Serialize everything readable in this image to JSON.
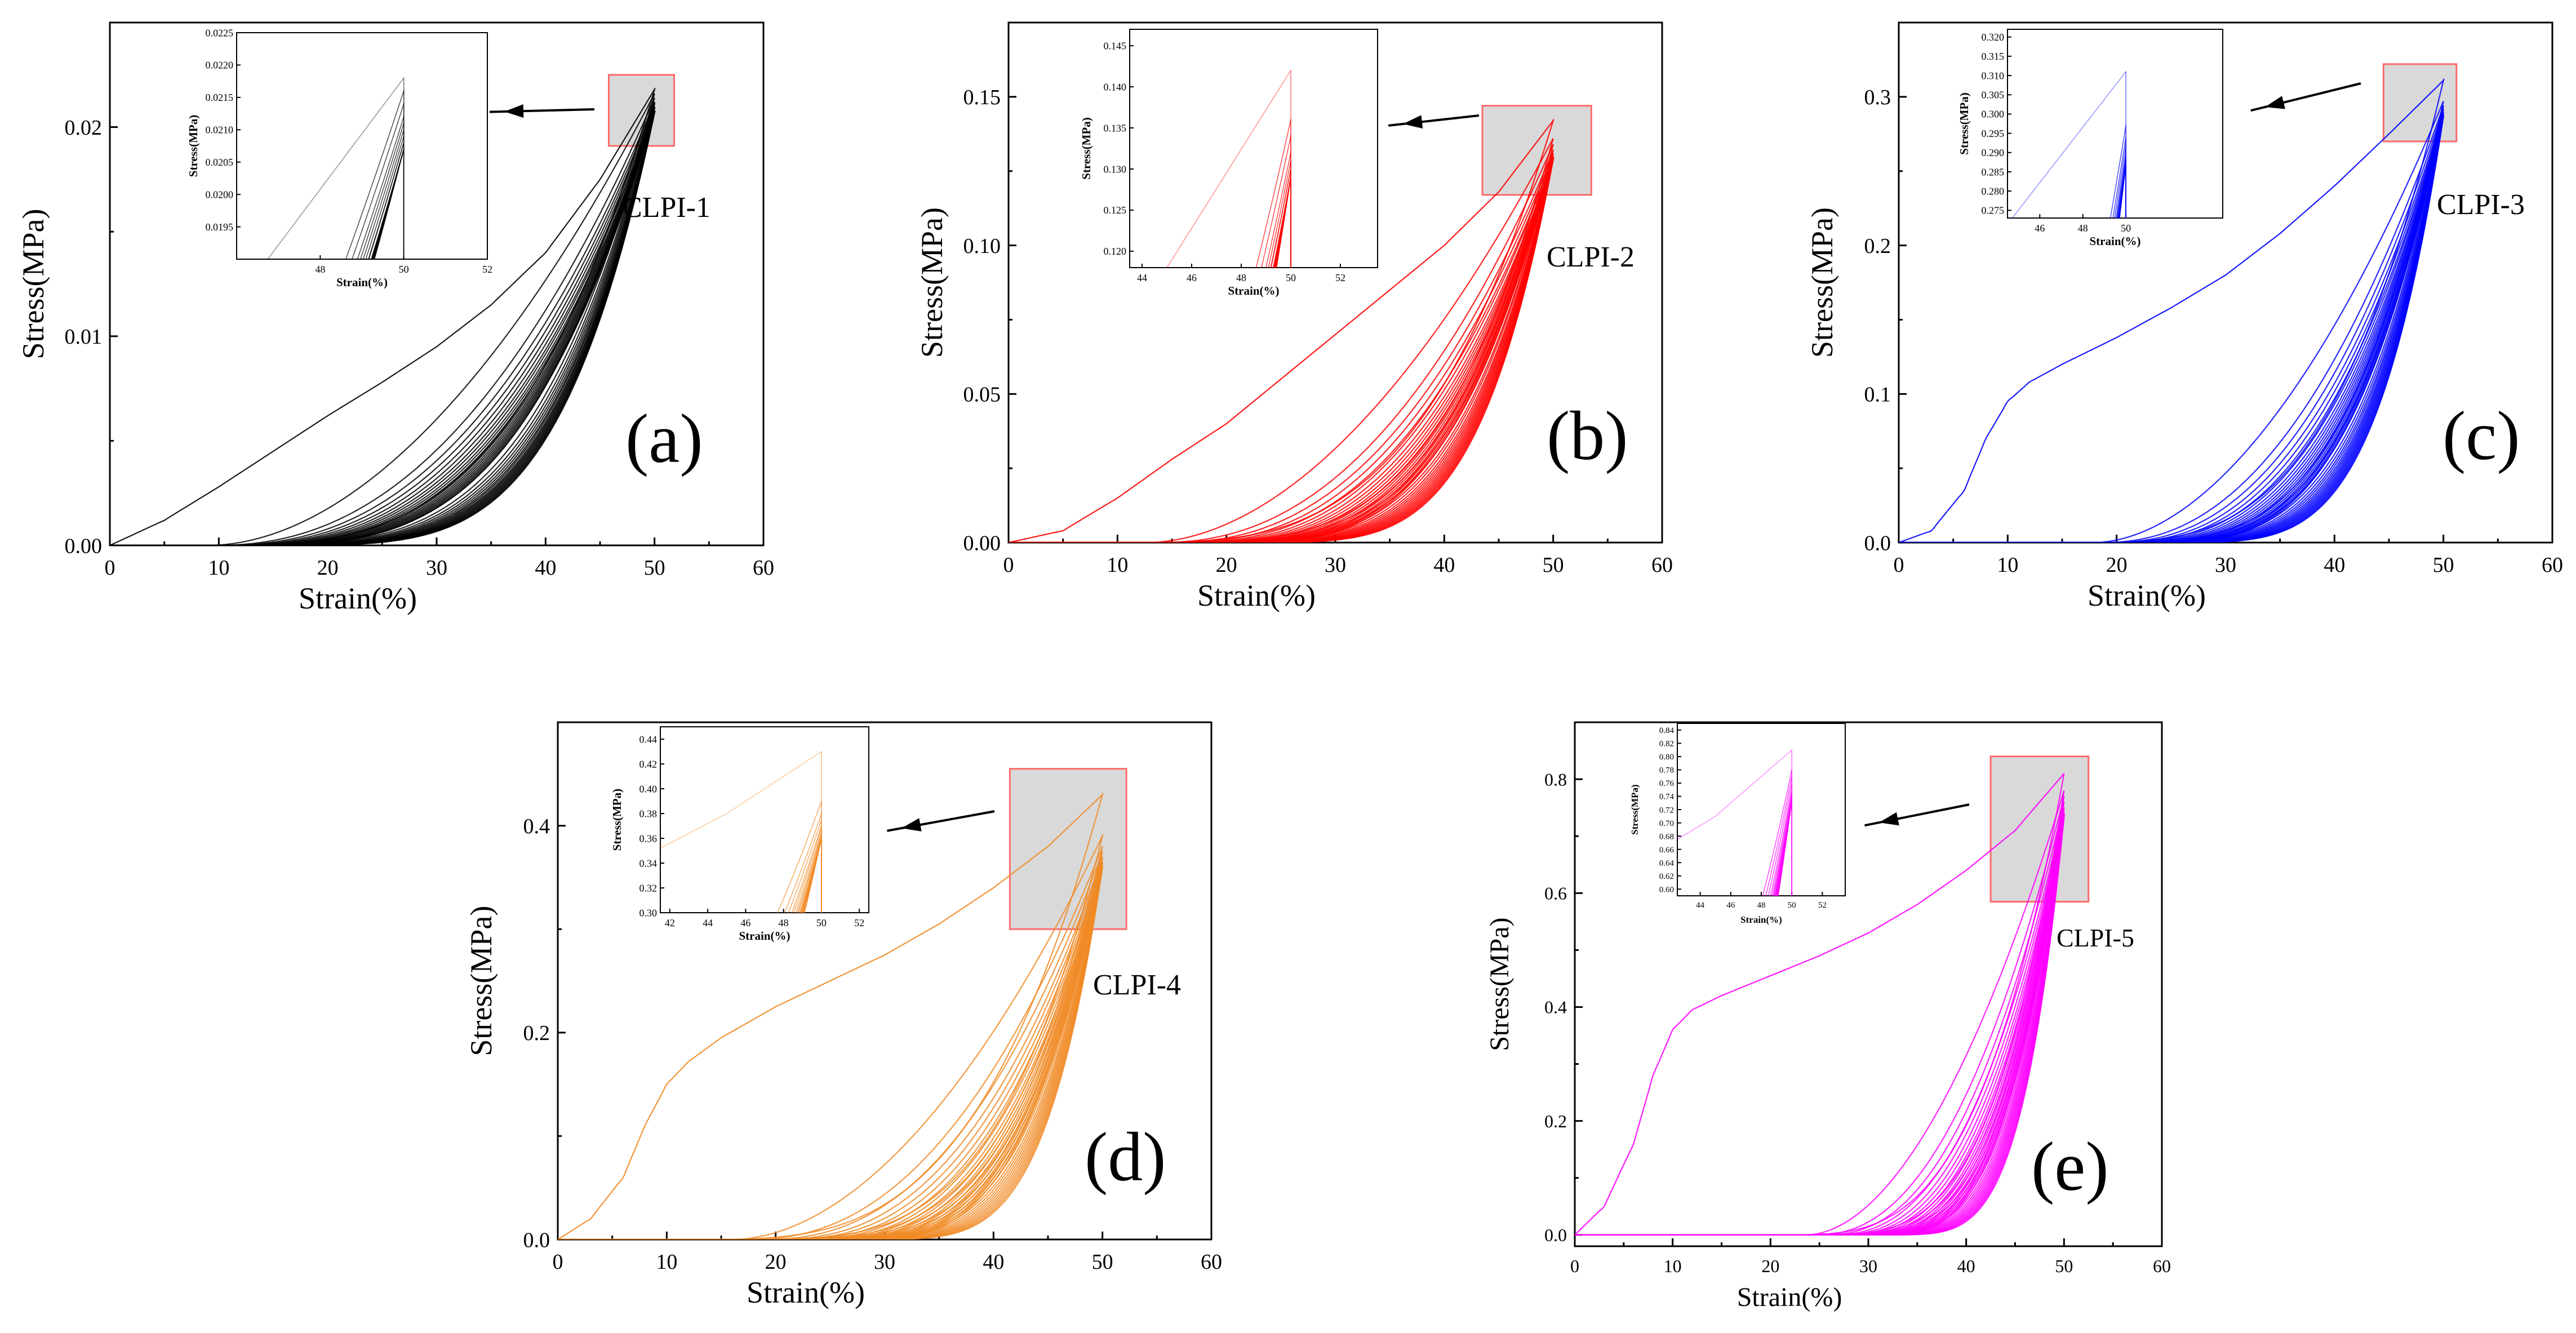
{
  "chart_data": [
    {
      "type": "line",
      "panel_letter": "(a)",
      "sample_label": "CLPI-1",
      "color": "#000000",
      "xlabel": "Strain(%)",
      "ylabel": "Stress(MPa)",
      "xlim": [
        0,
        60
      ],
      "ylim": [
        0,
        0.025
      ],
      "xticks": [
        0,
        10,
        20,
        30,
        40,
        50,
        60
      ],
      "xtick_labels": [
        "0",
        "10",
        "20",
        "30",
        "40",
        "50",
        "60"
      ],
      "yticks": [
        0,
        0.01,
        0.02
      ],
      "ytick_labels": [
        "0.00",
        "0.01",
        "0.02"
      ],
      "cycles": 20,
      "loading_curve": {
        "x": [
          0,
          5,
          10,
          15,
          20,
          25,
          30,
          35,
          40,
          45,
          50
        ],
        "y": [
          0,
          0.0012,
          0.0028,
          0.0045,
          0.0062,
          0.0078,
          0.0095,
          0.0115,
          0.014,
          0.0175,
          0.0218
        ]
      },
      "cycle_peaks": [
        0.0218,
        0.0216,
        0.0214,
        0.0212,
        0.0211,
        0.021,
        0.0209,
        0.0208,
        0.0208,
        0.0207
      ],
      "unloading_zero_strain": 8,
      "final_zero_strain": 12,
      "inset": {
        "xlabel": "Strain(%)",
        "ylabel": "Stress(MPa)",
        "xlim": [
          46,
          52
        ],
        "ylim": [
          0.019,
          0.0225
        ],
        "xticks": [
          48,
          50,
          52
        ],
        "xtick_labels": [
          "48",
          "50",
          "52"
        ],
        "yticks": [
          0.0195,
          0.02,
          0.0205,
          0.021,
          0.0215,
          0.022,
          0.0225
        ],
        "ytick_labels": [
          "0.0195",
          "0.0200",
          "0.0205",
          "0.0210",
          "0.0215",
          "0.0220",
          "0.0225"
        ]
      },
      "zoom_box": {
        "x": [
          45.8,
          51.8
        ],
        "y": [
          0.0191,
          0.0225
        ]
      }
    },
    {
      "type": "line",
      "panel_letter": "(b)",
      "sample_label": "CLPI-2",
      "color": "#ff0000",
      "xlabel": "Strain(%)",
      "ylabel": "Stress(MPa)",
      "xlim": [
        0,
        60
      ],
      "ylim": [
        0,
        0.175
      ],
      "xticks": [
        0,
        10,
        20,
        30,
        40,
        50,
        60
      ],
      "xtick_labels": [
        "0",
        "10",
        "20",
        "30",
        "40",
        "50",
        "60"
      ],
      "yticks": [
        0,
        0.05,
        0.1,
        0.15
      ],
      "ytick_labels": [
        "0.00",
        "0.05",
        "0.10",
        "0.15"
      ],
      "cycles": 20,
      "loading_curve": {
        "x": [
          0,
          5,
          10,
          15,
          20,
          25,
          30,
          35,
          40,
          45,
          50
        ],
        "y": [
          0,
          0.004,
          0.015,
          0.028,
          0.04,
          0.055,
          0.07,
          0.085,
          0.1,
          0.118,
          0.142
        ]
      },
      "cycle_peaks": [
        0.142,
        0.136,
        0.134,
        0.132,
        0.131,
        0.13,
        0.13,
        0.129,
        0.129,
        0.129
      ],
      "unloading_zero_strain": 10,
      "final_zero_strain": 20,
      "inset": {
        "xlabel": "Strain(%)",
        "ylabel": "Stress(MPa)",
        "xlim": [
          43.5,
          53.5
        ],
        "ylim": [
          0.118,
          0.147
        ],
        "xticks": [
          44,
          46,
          48,
          50,
          52
        ],
        "xtick_labels": [
          "44",
          "46",
          "48",
          "50",
          "52"
        ],
        "yticks": [
          0.12,
          0.125,
          0.13,
          0.135,
          0.14,
          0.145
        ],
        "ytick_labels": [
          "0.120",
          "0.125",
          "0.130",
          "0.135",
          "0.140",
          "0.145"
        ]
      },
      "zoom_box": {
        "x": [
          43.5,
          53.5
        ],
        "y": [
          0.117,
          0.147
        ]
      }
    },
    {
      "type": "line",
      "panel_letter": "(c)",
      "sample_label": "CLPI-3",
      "color": "#0000ff",
      "xlabel": "Strain(%)",
      "ylabel": "Stress(MPa)",
      "xlim": [
        0,
        60
      ],
      "ylim": [
        0,
        0.35
      ],
      "xticks": [
        0,
        10,
        20,
        30,
        40,
        50,
        60
      ],
      "xtick_labels": [
        "0",
        "10",
        "20",
        "30",
        "40",
        "50",
        "60"
      ],
      "yticks": [
        0,
        0.1,
        0.2,
        0.3
      ],
      "ytick_labels": [
        "0.0",
        "0.1",
        "0.2",
        "0.3"
      ],
      "cycles": 20,
      "loading_curve": {
        "x": [
          0,
          3,
          6,
          8,
          10,
          12,
          15,
          20,
          25,
          30,
          35,
          40,
          45,
          50
        ],
        "y": [
          0,
          0.008,
          0.035,
          0.07,
          0.095,
          0.108,
          0.12,
          0.138,
          0.158,
          0.18,
          0.208,
          0.24,
          0.275,
          0.311
        ]
      },
      "cycle_peaks": [
        0.311,
        0.297,
        0.294,
        0.292,
        0.29,
        0.289,
        0.288,
        0.288,
        0.287,
        0.287
      ],
      "unloading_zero_strain": 16,
      "final_zero_strain": 23,
      "inset": {
        "xlabel": "Strain(%)",
        "ylabel": "Stress(MPa)",
        "xlim": [
          44.5,
          54.5
        ],
        "ylim": [
          0.273,
          0.322
        ],
        "xticks": [
          46,
          48,
          50
        ],
        "xtick_labels": [
          "46",
          "48",
          "50"
        ],
        "yticks": [
          0.275,
          0.28,
          0.285,
          0.29,
          0.295,
          0.3,
          0.305,
          0.31,
          0.315,
          0.32
        ],
        "ytick_labels": [
          "0.275",
          "0.280",
          "0.285",
          "0.290",
          "0.295",
          "0.300",
          "0.305",
          "0.310",
          "0.315",
          "0.320"
        ]
      },
      "zoom_box": {
        "x": [
          44.5,
          51.2
        ],
        "y": [
          0.27,
          0.322
        ]
      }
    },
    {
      "type": "line",
      "panel_letter": "(d)",
      "sample_label": "CLPI-4",
      "color": "#f08a24",
      "xlabel": "Strain(%)",
      "ylabel": "Stress(MPa)",
      "xlim": [
        0,
        60
      ],
      "ylim": [
        0,
        0.5
      ],
      "xticks": [
        0,
        10,
        20,
        30,
        40,
        50,
        60
      ],
      "xtick_labels": [
        "0",
        "10",
        "20",
        "30",
        "40",
        "50",
        "60"
      ],
      "yticks": [
        0,
        0.2,
        0.4
      ],
      "ytick_labels": [
        "0.0",
        "0.2",
        "0.4"
      ],
      "cycles": 20,
      "loading_curve": {
        "x": [
          0,
          3,
          6,
          8,
          10,
          12,
          15,
          20,
          25,
          30,
          35,
          40,
          45,
          50
        ],
        "y": [
          0,
          0.02,
          0.06,
          0.11,
          0.15,
          0.172,
          0.195,
          0.225,
          0.25,
          0.275,
          0.305,
          0.34,
          0.38,
          0.43
        ]
      },
      "cycle_peaks": [
        0.43,
        0.39,
        0.38,
        0.375,
        0.37,
        0.368,
        0.365,
        0.363,
        0.362,
        0.36
      ],
      "unloading_zero_strain": 12,
      "final_zero_strain": 27,
      "inset": {
        "xlabel": "Strain(%)",
        "ylabel": "Stress(MPa)",
        "xlim": [
          41.5,
          52.5
        ],
        "ylim": [
          0.3,
          0.45
        ],
        "xticks": [
          42,
          44,
          46,
          48,
          50,
          52
        ],
        "xtick_labels": [
          "42",
          "44",
          "46",
          "48",
          "50",
          "52"
        ],
        "yticks": [
          0.3,
          0.32,
          0.34,
          0.36,
          0.38,
          0.4,
          0.42,
          0.44
        ],
        "ytick_labels": [
          "0.30",
          "0.32",
          "0.34",
          "0.36",
          "0.38",
          "0.40",
          "0.42",
          "0.44"
        ]
      },
      "zoom_box": {
        "x": [
          41.5,
          52.2
        ],
        "y": [
          0.3,
          0.455
        ]
      }
    },
    {
      "type": "line",
      "panel_letter": "(e)",
      "sample_label": "CLPI-5",
      "color": "#ff00ff",
      "xlabel": "Strain(%)",
      "ylabel": "Stress(MPa)",
      "xlim": [
        0,
        60
      ],
      "ylim": [
        -0.02,
        0.9
      ],
      "xticks": [
        0,
        10,
        20,
        30,
        40,
        50,
        60
      ],
      "xtick_labels": [
        "0",
        "10",
        "20",
        "30",
        "40",
        "50",
        "60"
      ],
      "yticks": [
        0,
        0.2,
        0.4,
        0.6,
        0.8
      ],
      "ytick_labels": [
        "0.0",
        "0.2",
        "0.4",
        "0.6",
        "0.8"
      ],
      "cycles": 20,
      "loading_curve": {
        "x": [
          0,
          3,
          6,
          8,
          10,
          12,
          15,
          20,
          25,
          30,
          35,
          40,
          45,
          50
        ],
        "y": [
          0,
          0.05,
          0.16,
          0.28,
          0.36,
          0.395,
          0.42,
          0.455,
          0.49,
          0.53,
          0.58,
          0.64,
          0.71,
          0.81
        ]
      },
      "cycle_peaks": [
        0.81,
        0.78,
        0.77,
        0.76,
        0.75,
        0.745,
        0.74,
        0.738,
        0.736,
        0.735
      ],
      "unloading_zero_strain": 21,
      "final_zero_strain": 31,
      "inset": {
        "xlabel": "Strain(%)",
        "ylabel": "Stress(MPa)",
        "xlim": [
          42.5,
          53.5
        ],
        "ylim": [
          0.59,
          0.85
        ],
        "xticks": [
          44,
          46,
          48,
          50,
          52
        ],
        "xtick_labels": [
          "44",
          "46",
          "48",
          "50",
          "52"
        ],
        "yticks": [
          0.6,
          0.62,
          0.64,
          0.66,
          0.68,
          0.7,
          0.72,
          0.74,
          0.76,
          0.78,
          0.8,
          0.82,
          0.84
        ],
        "ytick_labels": [
          "0.60",
          "0.62",
          "0.64",
          "0.66",
          "0.68",
          "0.70",
          "0.72",
          "0.74",
          "0.76",
          "0.78",
          "0.80",
          "0.82",
          "0.84"
        ]
      },
      "zoom_box": {
        "x": [
          42.5,
          52.5
        ],
        "y": [
          0.585,
          0.84
        ]
      }
    }
  ]
}
